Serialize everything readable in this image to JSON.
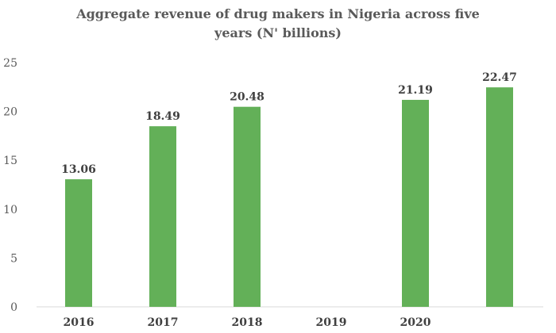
{
  "chart_data": {
    "type": "bar",
    "title": "Aggregate revenue of drug makers in Nigeria across five years (N' billions)",
    "categories": [
      "2016",
      "2017",
      "2018",
      "2019",
      "2020",
      ""
    ],
    "values": [
      13.06,
      18.49,
      20.48,
      null,
      21.19,
      22.47
    ],
    "data_labels": [
      "13.06",
      "18.49",
      "20.48",
      "",
      "21.19",
      "22.47"
    ],
    "xlabel": "",
    "ylabel": "",
    "ylim": [
      0,
      25
    ],
    "yticks": [
      0,
      5,
      10,
      15,
      20,
      25
    ],
    "grid": false,
    "legend": "none",
    "bar_color": "#63b058"
  }
}
